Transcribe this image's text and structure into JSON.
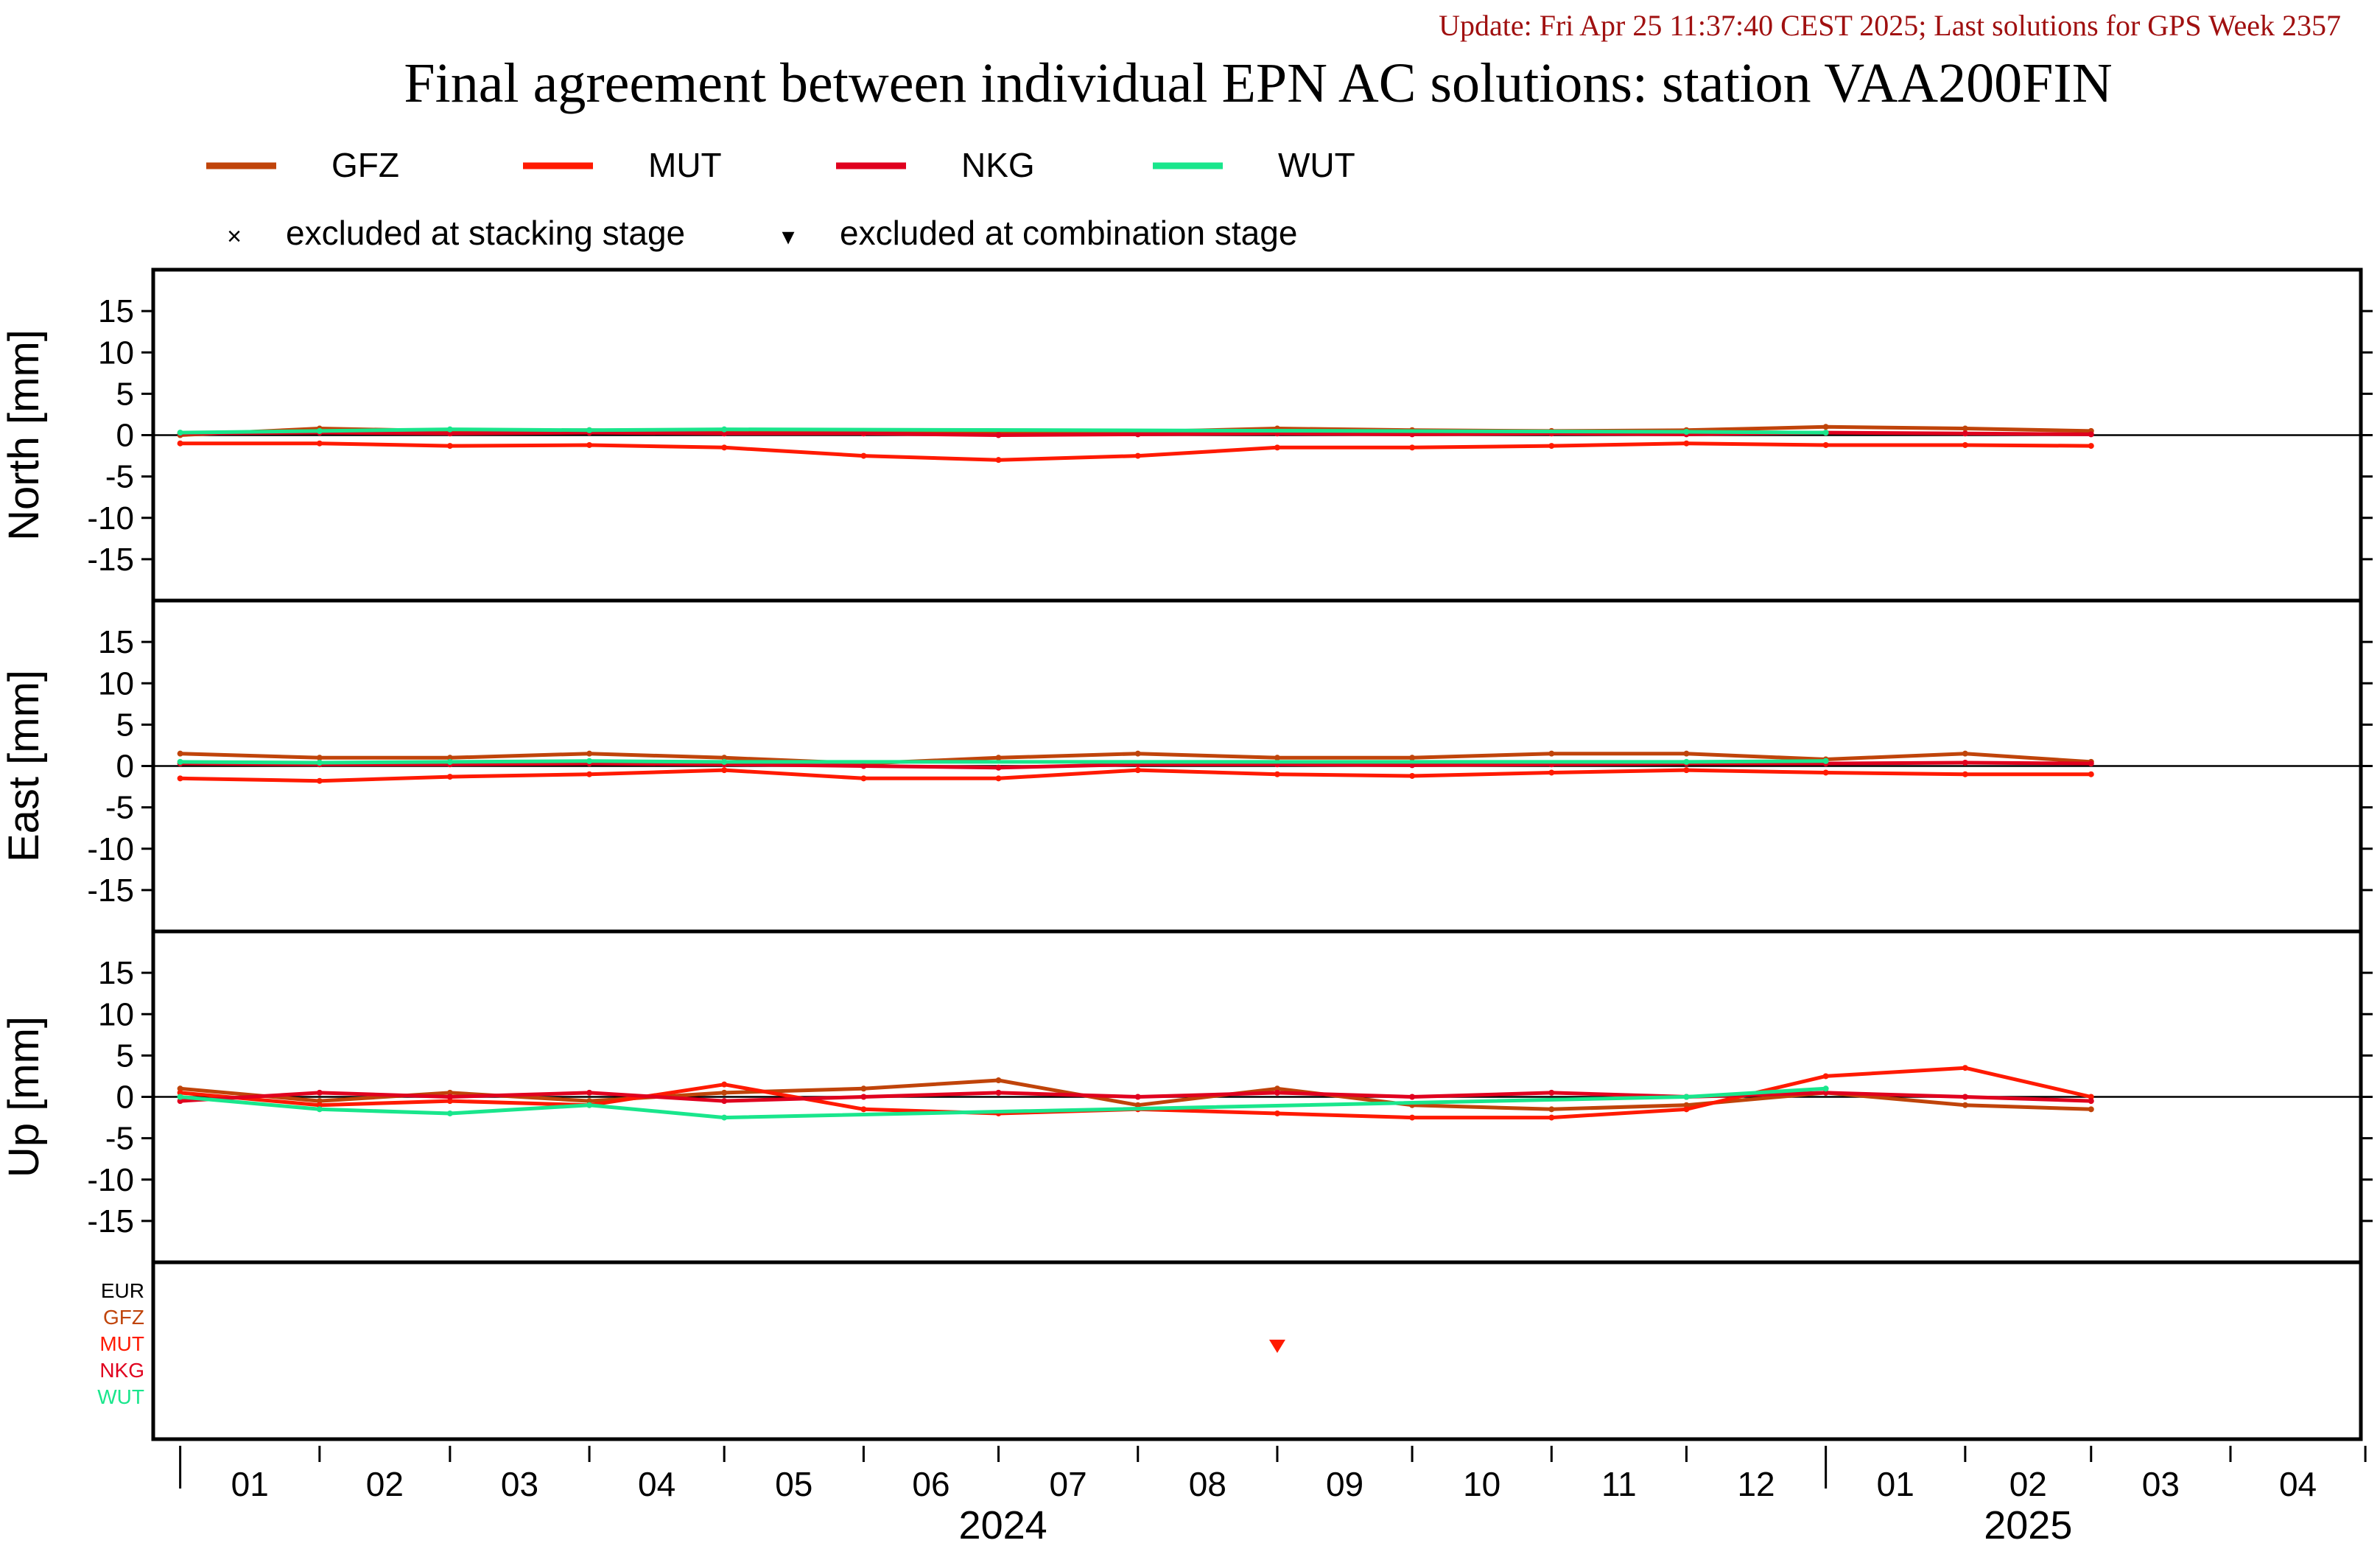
{
  "header": {
    "update_line": "Update: Fri Apr 25 11:37:40 CEST 2025; Last solutions for GPS Week 2357",
    "title": "Final agreement between individual EPN AC solutions: station VAA200FIN"
  },
  "legend": {
    "series": [
      {
        "name": "GFZ",
        "color": "#c0440a"
      },
      {
        "name": "MUT",
        "color": "#ff1a00"
      },
      {
        "name": "NKG",
        "color": "#e0001e"
      },
      {
        "name": "WUT",
        "color": "#19e68c"
      }
    ],
    "markers": [
      {
        "symbol": "×",
        "label": "excluded at stacking stage"
      },
      {
        "symbol": "▾",
        "label": "excluded at combination stage"
      }
    ]
  },
  "chart_data": {
    "type": "line",
    "x_unit": "date",
    "x_range": [
      "2023-12-26",
      "2025-04-30"
    ],
    "month_ticks": [
      "01",
      "02",
      "03",
      "04",
      "05",
      "06",
      "07",
      "08",
      "09",
      "10",
      "11",
      "12",
      "01",
      "02",
      "03",
      "04"
    ],
    "year_labels": [
      "2024",
      "2025"
    ],
    "ylim": [
      -20,
      20
    ],
    "yticks": [
      15,
      10,
      5,
      0,
      -5,
      -10,
      -15
    ],
    "grid": false,
    "panels": [
      {
        "ylabel": "North [mm]",
        "series": [
          {
            "name": "GFZ",
            "x": [
              "2024-01-01",
              "2024-02-01",
              "2024-03-01",
              "2024-04-01",
              "2024-05-01",
              "2024-06-01",
              "2024-07-01",
              "2024-08-01",
              "2024-09-01",
              "2024-10-01",
              "2024-11-01",
              "2024-12-01",
              "2025-01-01",
              "2025-02-01",
              "2025-03-01"
            ],
            "y": [
              0.0,
              0.8,
              0.5,
              0.6,
              0.4,
              0.5,
              0.2,
              0.4,
              0.8,
              0.6,
              0.5,
              0.6,
              1.0,
              0.8,
              0.5
            ]
          },
          {
            "name": "MUT",
            "x": [
              "2024-01-01",
              "2024-02-01",
              "2024-03-01",
              "2024-04-01",
              "2024-05-01",
              "2024-06-01",
              "2024-07-01",
              "2024-08-01",
              "2024-09-01",
              "2024-10-01",
              "2024-11-01",
              "2024-12-01",
              "2025-01-01",
              "2025-02-01",
              "2025-03-01"
            ],
            "y": [
              -1.0,
              -1.0,
              -1.3,
              -1.2,
              -1.5,
              -2.5,
              -3.0,
              -2.5,
              -1.5,
              -1.5,
              -1.3,
              -1.0,
              -1.2,
              -1.2,
              -1.3
            ]
          },
          {
            "name": "NKG",
            "x": [
              "2024-01-01",
              "2024-02-01",
              "2024-03-01",
              "2024-04-01",
              "2024-05-01",
              "2024-06-01",
              "2024-07-01",
              "2024-08-01",
              "2024-09-01",
              "2024-10-01",
              "2024-11-01",
              "2024-12-01",
              "2025-01-01",
              "2025-02-01",
              "2025-03-01"
            ],
            "y": [
              0.2,
              0.3,
              0.2,
              0.3,
              0.2,
              0.2,
              0.0,
              0.1,
              0.2,
              0.1,
              0.2,
              0.1,
              0.3,
              0.2,
              0.1
            ]
          },
          {
            "name": "WUT",
            "x": [
              "2024-01-01",
              "2024-02-01",
              "2024-03-01",
              "2024-04-01",
              "2024-05-01",
              "2024-12-01",
              "2025-01-01"
            ],
            "y": [
              0.3,
              0.5,
              0.7,
              0.6,
              0.7,
              0.4,
              0.3
            ]
          }
        ]
      },
      {
        "ylabel": "East [mm]",
        "series": [
          {
            "name": "GFZ",
            "x": [
              "2024-01-01",
              "2024-02-01",
              "2024-03-01",
              "2024-04-01",
              "2024-05-01",
              "2024-06-01",
              "2024-07-01",
              "2024-08-01",
              "2024-09-01",
              "2024-10-01",
              "2024-11-01",
              "2024-12-01",
              "2025-01-01",
              "2025-02-01",
              "2025-03-01"
            ],
            "y": [
              1.5,
              1.0,
              1.0,
              1.5,
              1.0,
              0.3,
              1.0,
              1.5,
              1.0,
              1.0,
              1.5,
              1.5,
              0.8,
              1.5,
              0.5
            ]
          },
          {
            "name": "MUT",
            "x": [
              "2024-01-01",
              "2024-02-01",
              "2024-03-01",
              "2024-04-01",
              "2024-05-01",
              "2024-06-01",
              "2024-07-01",
              "2024-08-01",
              "2024-09-01",
              "2024-10-01",
              "2024-11-01",
              "2024-12-01",
              "2025-01-01",
              "2025-02-01",
              "2025-03-01"
            ],
            "y": [
              -1.5,
              -1.8,
              -1.3,
              -1.0,
              -0.5,
              -1.5,
              -1.5,
              -0.5,
              -1.0,
              -1.2,
              -0.8,
              -0.5,
              -0.8,
              -1.0,
              -1.0
            ]
          },
          {
            "name": "NKG",
            "x": [
              "2024-01-01",
              "2024-02-01",
              "2024-03-01",
              "2024-04-01",
              "2024-05-01",
              "2024-06-01",
              "2024-07-01",
              "2024-08-01",
              "2024-09-01",
              "2024-10-01",
              "2024-11-01",
              "2024-12-01",
              "2025-01-01",
              "2025-02-01",
              "2025-03-01"
            ],
            "y": [
              0.3,
              0.2,
              0.2,
              0.3,
              0.2,
              0.0,
              -0.2,
              0.2,
              0.2,
              0.1,
              0.2,
              0.3,
              0.3,
              0.4,
              0.3
            ]
          },
          {
            "name": "WUT",
            "x": [
              "2024-01-01",
              "2024-02-01",
              "2024-03-01",
              "2024-04-01",
              "2024-05-01",
              "2024-12-01",
              "2025-01-01"
            ],
            "y": [
              0.5,
              0.4,
              0.5,
              0.6,
              0.5,
              0.5,
              0.6
            ]
          }
        ]
      },
      {
        "ylabel": "Up [mm]",
        "series": [
          {
            "name": "GFZ",
            "x": [
              "2024-01-01",
              "2024-02-01",
              "2024-03-01",
              "2024-04-01",
              "2024-05-01",
              "2024-06-01",
              "2024-07-01",
              "2024-08-01",
              "2024-09-01",
              "2024-10-01",
              "2024-11-01",
              "2024-12-01",
              "2025-01-01",
              "2025-02-01",
              "2025-03-01"
            ],
            "y": [
              1.0,
              -0.5,
              0.5,
              -0.5,
              0.5,
              1.0,
              2.0,
              -1.0,
              1.0,
              -1.0,
              -1.5,
              -1.0,
              0.5,
              -1.0,
              -1.5
            ]
          },
          {
            "name": "MUT",
            "x": [
              "2024-01-01",
              "2024-02-01",
              "2024-03-01",
              "2024-04-01",
              "2024-05-01",
              "2024-06-01",
              "2024-07-01",
              "2024-08-01",
              "2024-09-01",
              "2024-10-01",
              "2024-11-01",
              "2024-12-01",
              "2025-01-01",
              "2025-02-01",
              "2025-03-01"
            ],
            "y": [
              0.5,
              -1.0,
              -0.5,
              -1.0,
              1.5,
              -1.5,
              -2.0,
              -1.5,
              -2.0,
              -2.5,
              -2.5,
              -1.5,
              2.5,
              3.5,
              0.0
            ]
          },
          {
            "name": "NKG",
            "x": [
              "2024-01-01",
              "2024-02-01",
              "2024-03-01",
              "2024-04-01",
              "2024-05-01",
              "2024-06-01",
              "2024-07-01",
              "2024-08-01",
              "2024-09-01",
              "2024-10-01",
              "2024-11-01",
              "2024-12-01",
              "2025-01-01",
              "2025-02-01",
              "2025-03-01"
            ],
            "y": [
              -0.5,
              0.5,
              0.0,
              0.5,
              -0.5,
              0.0,
              0.5,
              0.0,
              0.5,
              0.0,
              0.5,
              0.0,
              0.5,
              0.0,
              -0.5
            ]
          },
          {
            "name": "WUT",
            "x": [
              "2024-01-01",
              "2024-02-01",
              "2024-03-01",
              "2024-04-01",
              "2024-05-01",
              "2024-12-01",
              "2025-01-01"
            ],
            "y": [
              0.0,
              -1.5,
              -2.0,
              -1.0,
              -2.5,
              0.0,
              1.0
            ]
          }
        ]
      }
    ],
    "exclusion_panel": {
      "labels": [
        "EUR",
        "GFZ",
        "MUT",
        "NKG",
        "WUT"
      ],
      "label_colors": [
        "#000000",
        "#c0440a",
        "#ff1a00",
        "#e0001e",
        "#19e68c"
      ],
      "combination_exclusions": [
        {
          "ac": "MUT",
          "date": "2024-09-01"
        }
      ],
      "stacking_exclusions": []
    }
  }
}
